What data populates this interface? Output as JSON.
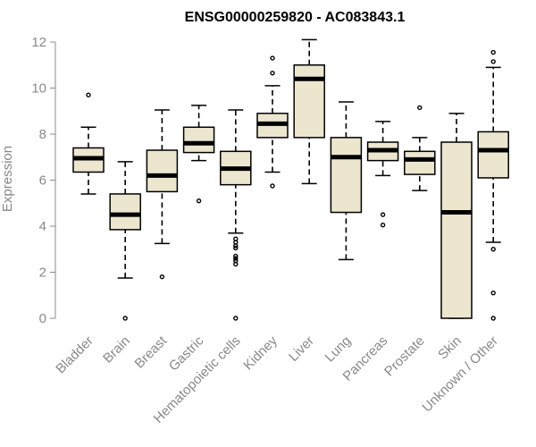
{
  "chart_data": {
    "type": "box",
    "title": "ENSG00000259820 - AC083843.1",
    "xlabel": "",
    "ylabel": "Expression",
    "ylim": [
      0,
      12
    ],
    "yticks": [
      0,
      2,
      4,
      6,
      8,
      10,
      12
    ],
    "grid": false,
    "colors": {
      "box_fill": "#ece6cf",
      "median": "#000000",
      "axis": "#888888",
      "text": "#888888",
      "title": "#000000"
    },
    "categories": [
      "Bladder",
      "Brain",
      "Breast",
      "Gastric",
      "Hematopoietic cells",
      "Kidney",
      "Liver",
      "Lung",
      "Pancreas",
      "Prostate",
      "Skin",
      "Unknown / Other"
    ],
    "boxes": [
      {
        "category": "Bladder",
        "whisker_low": 5.4,
        "q1": 6.35,
        "median": 6.95,
        "q3": 7.4,
        "whisker_high": 8.3,
        "outliers": [
          9.7
        ]
      },
      {
        "category": "Brain",
        "whisker_low": 1.75,
        "q1": 3.85,
        "median": 4.5,
        "q3": 5.4,
        "whisker_high": 6.8,
        "outliers": [
          0
        ]
      },
      {
        "category": "Breast",
        "whisker_low": 3.25,
        "q1": 5.5,
        "median": 6.2,
        "q3": 7.3,
        "whisker_high": 9.05,
        "outliers": [
          1.8
        ]
      },
      {
        "category": "Gastric",
        "whisker_low": 6.85,
        "q1": 7.2,
        "median": 7.6,
        "q3": 8.3,
        "whisker_high": 9.25,
        "outliers": [
          5.1
        ]
      },
      {
        "category": "Hematopoietic cells",
        "whisker_low": 3.7,
        "q1": 5.8,
        "median": 6.5,
        "q3": 7.25,
        "whisker_high": 9.05,
        "outliers": [
          3.45,
          3.3,
          3.15,
          3.05,
          2.7,
          2.6,
          2.5,
          2.35,
          0
        ]
      },
      {
        "category": "Kidney",
        "whisker_low": 6.35,
        "q1": 7.85,
        "median": 8.45,
        "q3": 8.9,
        "whisker_high": 10.1,
        "outliers": [
          10.65,
          11.3,
          5.75
        ]
      },
      {
        "category": "Liver",
        "whisker_low": 5.85,
        "q1": 7.85,
        "median": 10.4,
        "q3": 11.0,
        "whisker_high": 12.1,
        "outliers": []
      },
      {
        "category": "Lung",
        "whisker_low": 2.55,
        "q1": 4.6,
        "median": 7.0,
        "q3": 7.85,
        "whisker_high": 9.4,
        "outliers": []
      },
      {
        "category": "Pancreas",
        "whisker_low": 6.2,
        "q1": 6.85,
        "median": 7.3,
        "q3": 7.65,
        "whisker_high": 8.55,
        "outliers": [
          4.5,
          4.05
        ]
      },
      {
        "category": "Prostate",
        "whisker_low": 5.55,
        "q1": 6.25,
        "median": 6.9,
        "q3": 7.25,
        "whisker_high": 7.85,
        "outliers": [
          9.15
        ]
      },
      {
        "category": "Skin",
        "whisker_low": 0,
        "q1": 0,
        "median": 4.6,
        "q3": 7.65,
        "whisker_high": 8.9,
        "outliers": []
      },
      {
        "category": "Unknown / Other",
        "whisker_low": 3.3,
        "q1": 6.1,
        "median": 7.3,
        "q3": 8.1,
        "whisker_high": 10.9,
        "outliers": [
          11.55,
          11.15,
          3.0,
          1.1,
          0
        ]
      }
    ]
  }
}
